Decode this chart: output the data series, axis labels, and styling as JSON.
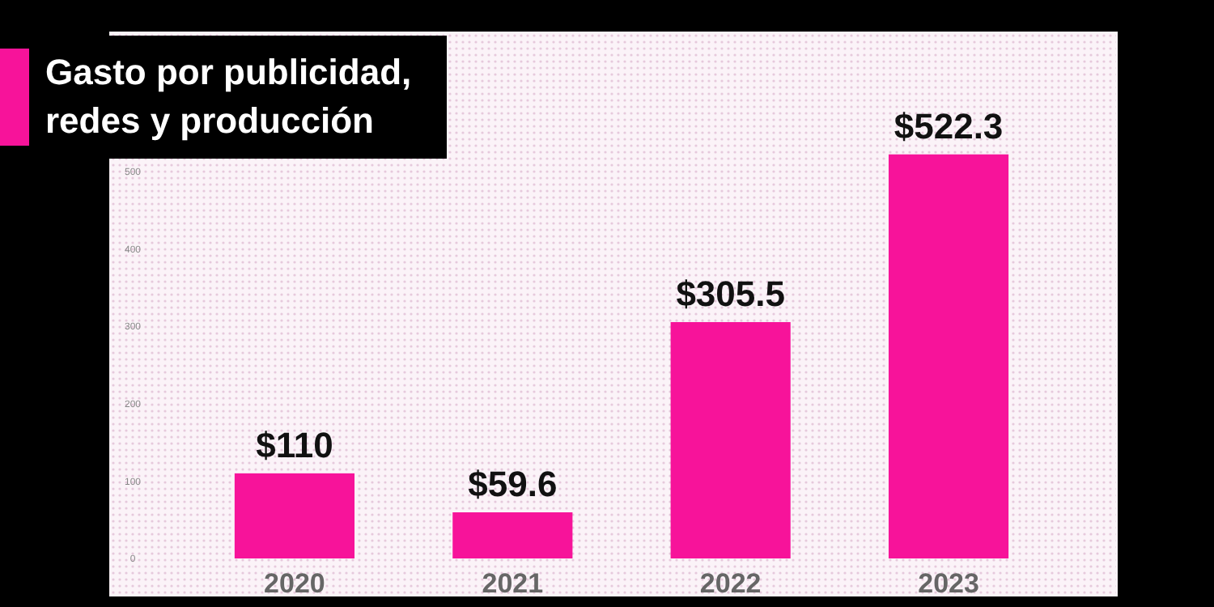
{
  "chart_data": {
    "type": "bar",
    "title": "Gasto por publicidad, redes y producción",
    "categories": [
      "2020",
      "2021",
      "2022",
      "2023"
    ],
    "values": [
      110,
      59.6,
      305.5,
      522.3
    ],
    "value_labels": [
      "$110",
      "$59.6",
      "$305.5",
      "$522.3"
    ],
    "color": "#f7139a",
    "ylim": [
      0,
      680
    ],
    "yticks": [
      0,
      100,
      200,
      300,
      400,
      500
    ]
  }
}
